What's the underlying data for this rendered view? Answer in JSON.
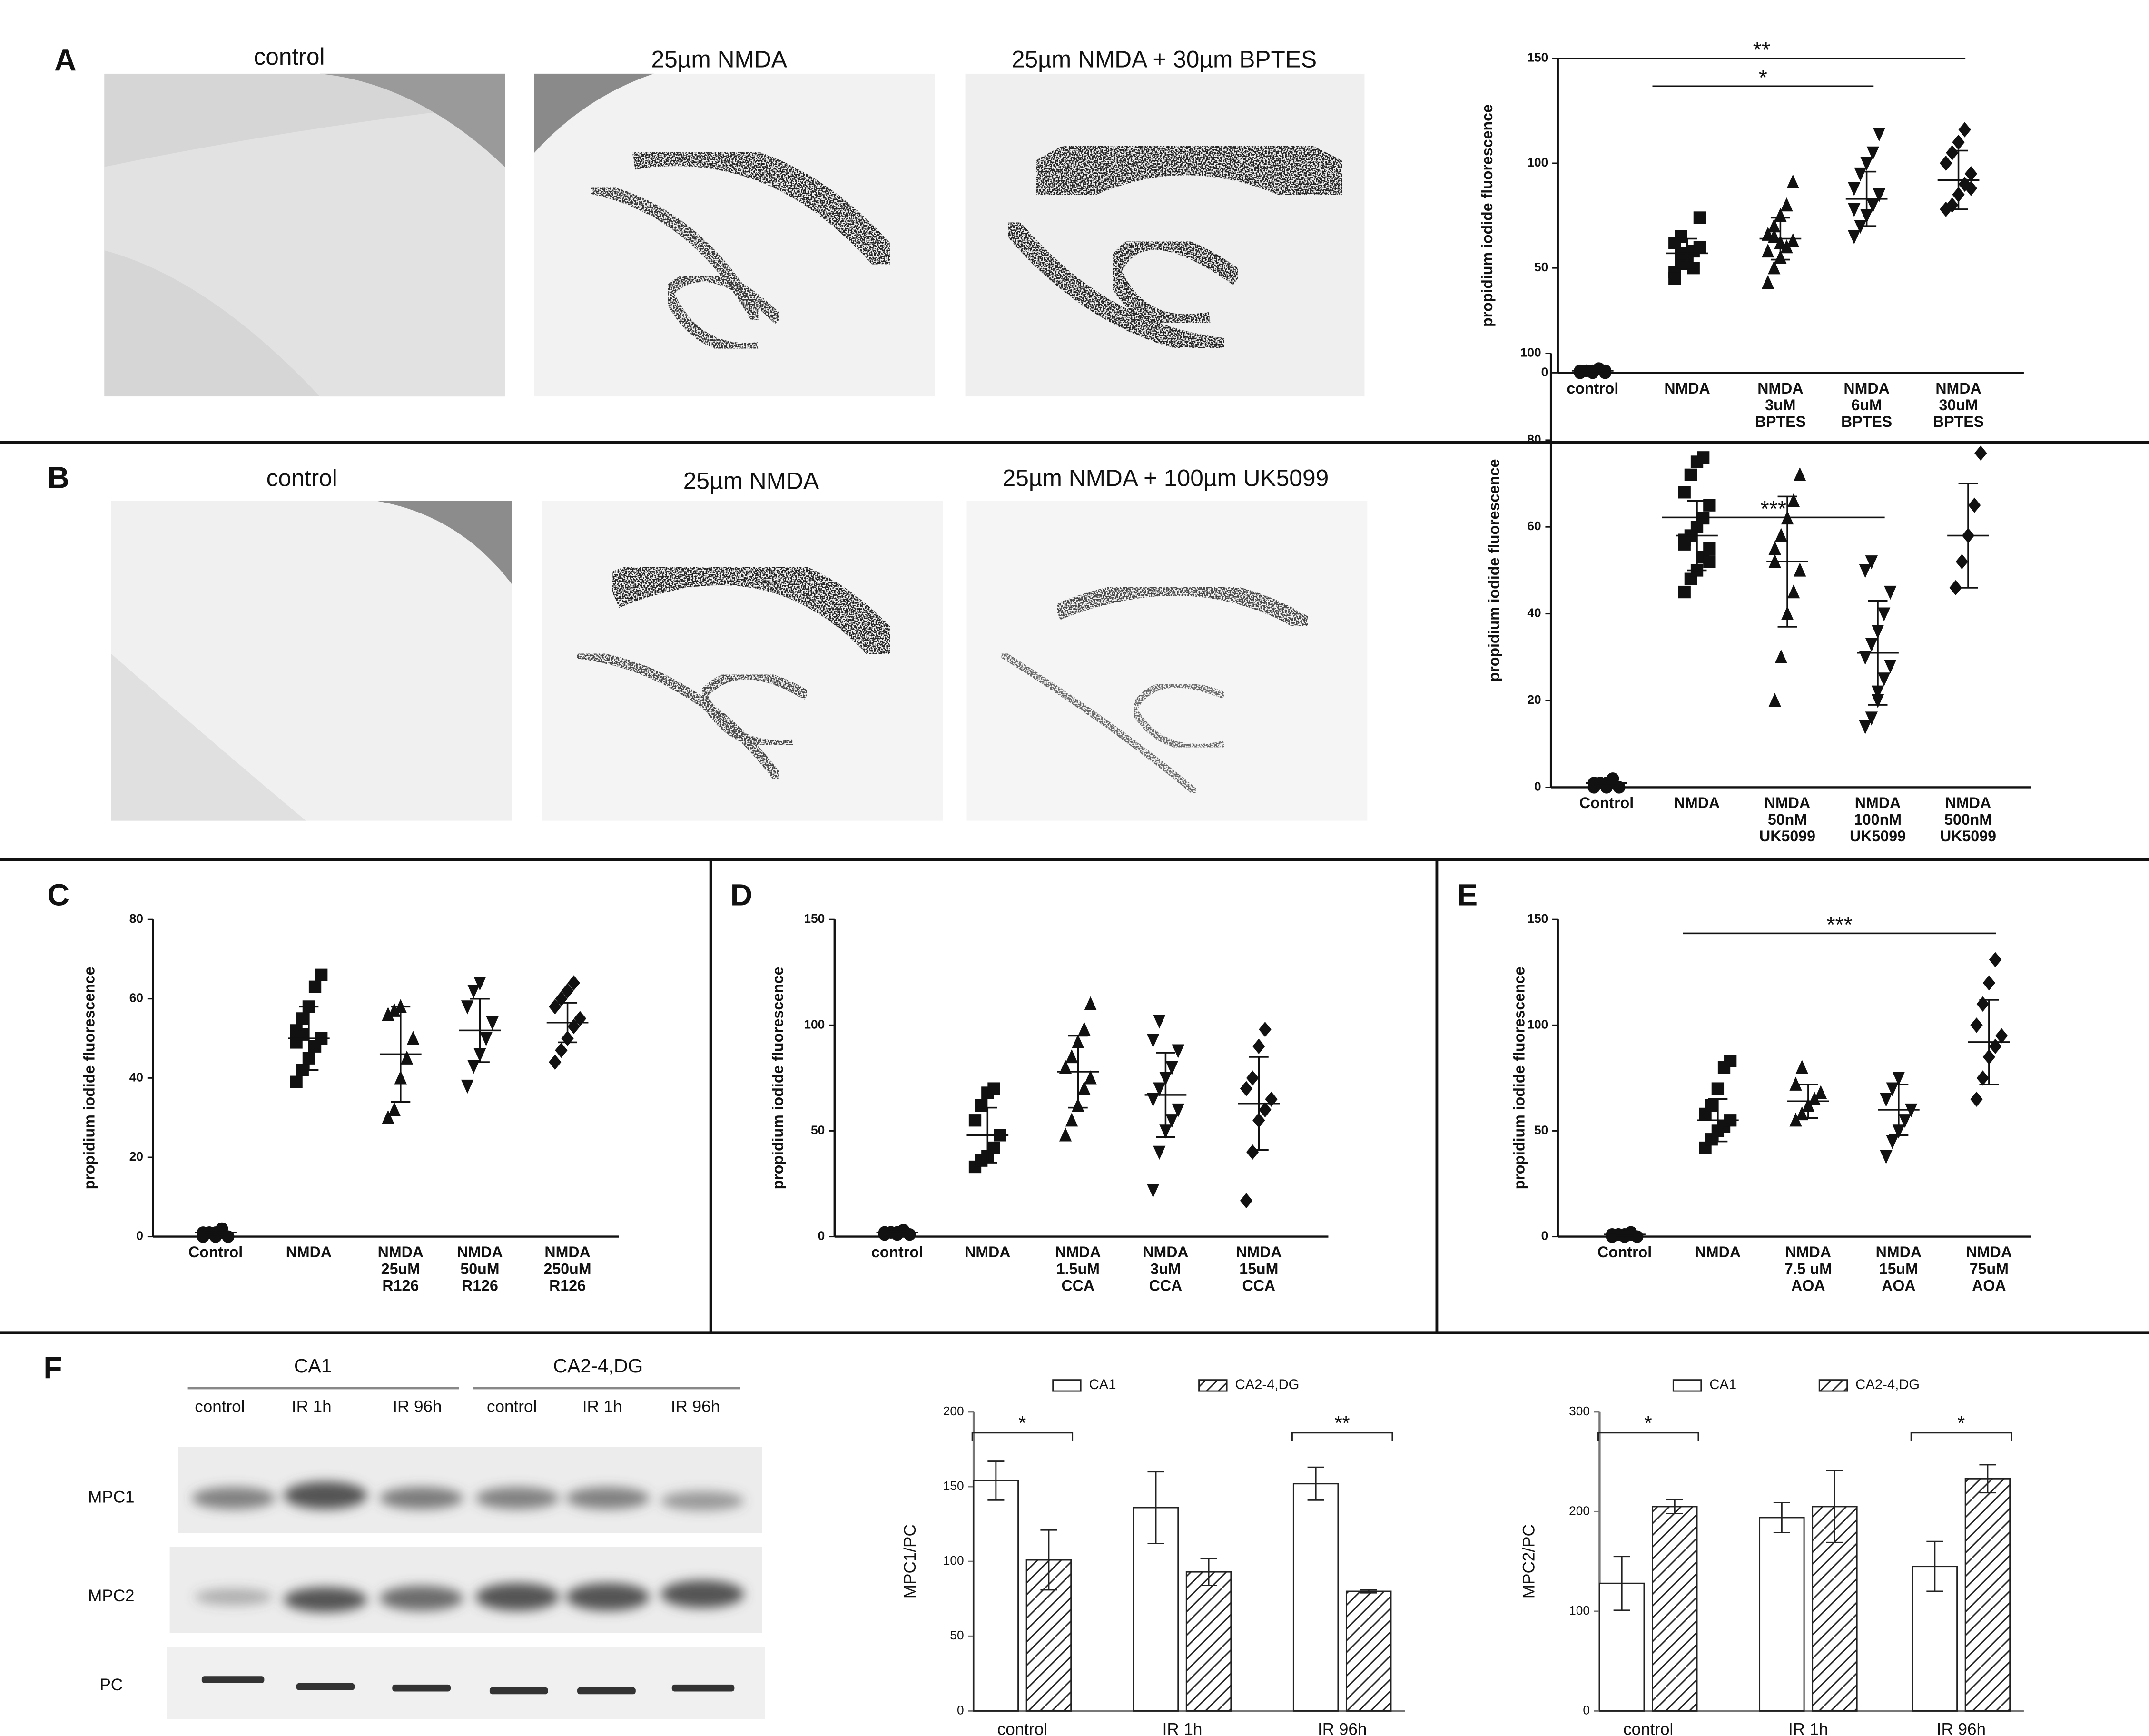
{
  "panel_labels": [
    "A",
    "B",
    "C",
    "D",
    "E",
    "F"
  ],
  "images": {
    "A": [
      "control",
      "25µm NMDA",
      "25µm NMDA + 30µm BPTES"
    ],
    "B": [
      "control",
      "25µm NMDA",
      "25µm NMDA + 100µm UK5099"
    ]
  },
  "blot": {
    "groups": [
      "CA1",
      "CA2-4,DG"
    ],
    "lanes": [
      "control",
      "IR 1h",
      "IR 96h",
      "control",
      "IR 1h",
      "IR 96h"
    ],
    "rows": [
      "MPC1",
      "MPC2",
      "PC"
    ]
  },
  "chart_data": [
    {
      "type": "dotplot",
      "ylabel": "propidium iodide fluorescence",
      "ylim": [
        0,
        150
      ],
      "yticks": [
        0,
        50,
        100,
        150
      ],
      "categories": [
        [
          "control"
        ],
        [
          "NMDA"
        ],
        [
          "NMDA",
          "3uM",
          "BPTES"
        ],
        [
          "NMDA",
          "6uM",
          "BPTES"
        ],
        [
          "NMDA",
          "30uM",
          "BPTES"
        ]
      ],
      "groups": [
        {
          "marker": "circle",
          "points": [
            0,
            1,
            1,
            2,
            0,
            1,
            1,
            0,
            2,
            1
          ],
          "mean": 1,
          "sd": 0.5
        },
        {
          "marker": "square",
          "points": [
            48,
            52,
            55,
            58,
            60,
            62,
            65,
            56,
            50,
            74,
            45,
            57
          ],
          "mean": 57,
          "sd": 7
        },
        {
          "marker": "triangle",
          "points": [
            43,
            50,
            55,
            60,
            63,
            66,
            70,
            75,
            80,
            91,
            58,
            65,
            62
          ],
          "mean": 64,
          "sd": 10
        },
        {
          "marker": "invtriangle",
          "points": [
            65,
            70,
            75,
            80,
            85,
            88,
            95,
            100,
            105,
            114,
            78
          ],
          "mean": 83,
          "sd": 13
        },
        {
          "marker": "diamond",
          "points": [
            78,
            80,
            85,
            90,
            95,
            100,
            105,
            110,
            116,
            88
          ],
          "mean": 92,
          "sd": 14
        }
      ],
      "annotations": [
        {
          "text": "**",
          "from": 0,
          "to": 4
        },
        {
          "text": "*",
          "from": 1,
          "to": 3
        }
      ]
    },
    {
      "type": "dotplot",
      "ylabel": "propidium iodide fluorescence",
      "ylim": [
        0,
        100
      ],
      "yticks": [
        0,
        20,
        40,
        60,
        80,
        100
      ],
      "categories": [
        [
          "Control"
        ],
        [
          "NMDA"
        ],
        [
          "NMDA",
          "50nM",
          "UK5099"
        ],
        [
          "NMDA",
          "100nM",
          "UK5099"
        ],
        [
          "NMDA",
          "500nM",
          "UK5099"
        ]
      ],
      "groups": [
        {
          "marker": "circle",
          "points": [
            0,
            1,
            1,
            2,
            0,
            1,
            1,
            0,
            1
          ],
          "mean": 1,
          "sd": 0.5
        },
        {
          "marker": "square",
          "points": [
            45,
            48,
            50,
            53,
            55,
            57,
            58,
            60,
            62,
            65,
            68,
            72,
            75,
            76,
            52,
            56
          ],
          "mean": 58,
          "sd": 8
        },
        {
          "marker": "triangle",
          "points": [
            20,
            30,
            40,
            45,
            50,
            55,
            58,
            62,
            66,
            72,
            52
          ],
          "mean": 52,
          "sd": 15
        },
        {
          "marker": "invtriangle",
          "points": [
            14,
            16,
            20,
            25,
            28,
            30,
            33,
            36,
            40,
            45,
            50,
            52,
            22
          ],
          "mean": 31,
          "sd": 12
        },
        {
          "marker": "diamond",
          "points": [
            46,
            52,
            58,
            65,
            77
          ],
          "mean": 58,
          "sd": 12
        }
      ],
      "annotations": [
        {
          "text": "***",
          "from": 1,
          "to": 3
        }
      ]
    },
    {
      "type": "dotplot",
      "ylabel": "propidium iodide fluorescence",
      "ylim": [
        0,
        80
      ],
      "yticks": [
        0,
        20,
        40,
        60,
        80
      ],
      "categories": [
        [
          "Control"
        ],
        [
          "NMDA"
        ],
        [
          "NMDA",
          "25uM",
          "R126"
        ],
        [
          "NMDA",
          "50uM",
          "R126"
        ],
        [
          "NMDA",
          "250uM",
          "R126"
        ]
      ],
      "groups": [
        {
          "marker": "circle",
          "points": [
            0,
            1,
            1,
            2,
            0,
            1,
            1,
            0,
            1
          ],
          "mean": 1,
          "sd": 0.5
        },
        {
          "marker": "square",
          "points": [
            39,
            42,
            45,
            48,
            50,
            52,
            55,
            58,
            63,
            66,
            49,
            51
          ],
          "mean": 50,
          "sd": 8
        },
        {
          "marker": "triangle",
          "points": [
            30,
            32,
            40,
            45,
            50,
            56,
            57,
            58
          ],
          "mean": 46,
          "sd": 12
        },
        {
          "marker": "invtriangle",
          "points": [
            38,
            43,
            46,
            50,
            54,
            58,
            62,
            64
          ],
          "mean": 52,
          "sd": 8
        },
        {
          "marker": "diamond",
          "points": [
            44,
            47,
            50,
            53,
            55,
            58,
            60,
            62,
            64
          ],
          "mean": 54,
          "sd": 5
        }
      ],
      "annotations": []
    },
    {
      "type": "dotplot",
      "ylabel": "propidium iodide fluorescence",
      "ylim": [
        0,
        150
      ],
      "yticks": [
        0,
        50,
        100,
        150
      ],
      "categories": [
        [
          "control"
        ],
        [
          "NMDA"
        ],
        [
          "NMDA",
          "1.5uM",
          "CCA"
        ],
        [
          "NMDA",
          "3uM",
          "CCA"
        ],
        [
          "NMDA",
          "15uM",
          "CCA"
        ]
      ],
      "groups": [
        {
          "marker": "circle",
          "points": [
            1,
            2,
            2,
            3,
            1,
            2,
            2,
            1,
            3
          ],
          "mean": 2,
          "sd": 0.5
        },
        {
          "marker": "square",
          "points": [
            33,
            36,
            38,
            42,
            48,
            55,
            62,
            68,
            70
          ],
          "mean": 48,
          "sd": 13
        },
        {
          "marker": "triangle",
          "points": [
            48,
            55,
            62,
            70,
            75,
            80,
            85,
            92,
            98,
            110
          ],
          "mean": 78,
          "sd": 17
        },
        {
          "marker": "invtriangle",
          "points": [
            22,
            40,
            50,
            55,
            60,
            65,
            70,
            75,
            80,
            88,
            93,
            102
          ],
          "mean": 67,
          "sd": 20
        },
        {
          "marker": "diamond",
          "points": [
            17,
            40,
            55,
            60,
            65,
            70,
            75,
            90,
            98
          ],
          "mean": 63,
          "sd": 22
        }
      ],
      "annotations": []
    },
    {
      "type": "dotplot",
      "ylabel": "propidium iodide fluorescence",
      "ylim": [
        0,
        150
      ],
      "yticks": [
        0,
        50,
        100,
        150
      ],
      "categories": [
        [
          "Control"
        ],
        [
          "NMDA"
        ],
        [
          "NMDA",
          "7.5 uM",
          "AOA"
        ],
        [
          "NMDA",
          "15uM",
          "AOA"
        ],
        [
          "NMDA",
          "75uM",
          "AOA"
        ]
      ],
      "groups": [
        {
          "marker": "circle",
          "points": [
            0,
            1,
            1,
            2,
            0,
            1,
            1,
            0,
            1
          ],
          "mean": 1,
          "sd": 0.5
        },
        {
          "marker": "square",
          "points": [
            42,
            46,
            50,
            52,
            55,
            58,
            62,
            70,
            80,
            83
          ],
          "mean": 55,
          "sd": 10
        },
        {
          "marker": "triangle",
          "points": [
            55,
            58,
            62,
            65,
            68,
            72,
            80
          ],
          "mean": 64,
          "sd": 8
        },
        {
          "marker": "invtriangle",
          "points": [
            38,
            45,
            50,
            55,
            60,
            65,
            70,
            75
          ],
          "mean": 60,
          "sd": 12
        },
        {
          "marker": "diamond",
          "points": [
            65,
            75,
            85,
            90,
            95,
            100,
            110,
            120,
            131
          ],
          "mean": 92,
          "sd": 20
        }
      ],
      "annotations": [
        {
          "text": "***",
          "from": 1,
          "to": 4
        }
      ]
    },
    {
      "type": "bar",
      "ylabel": "MPC1/PC",
      "ylim": [
        0,
        200
      ],
      "yticks": [
        0,
        50,
        100,
        150,
        200
      ],
      "categories": [
        "control",
        "IR 1h",
        "IR 96h"
      ],
      "series": [
        {
          "name": "CA1",
          "color": "#ffffff",
          "values": [
            154,
            136,
            152
          ],
          "errors": [
            13,
            24,
            11
          ]
        },
        {
          "name": "CA2-4,DG",
          "color": "#ffffff",
          "pattern": "hatched",
          "values": [
            101,
            93,
            80
          ],
          "errors": [
            20,
            9,
            1
          ]
        }
      ],
      "annotations": [
        {
          "text": "*",
          "category": 0
        },
        {
          "text": "**",
          "category": 2
        }
      ]
    },
    {
      "type": "bar",
      "ylabel": "MPC2/PC",
      "ylim": [
        0,
        300
      ],
      "yticks": [
        0,
        100,
        200,
        300
      ],
      "categories": [
        "control",
        "IR 1h",
        "IR 96h"
      ],
      "series": [
        {
          "name": "CA1",
          "color": "#ffffff",
          "values": [
            128,
            194,
            145
          ],
          "errors": [
            27,
            15,
            25
          ]
        },
        {
          "name": "CA2-4,DG",
          "color": "#ffffff",
          "pattern": "hatched",
          "values": [
            205,
            205,
            233
          ],
          "errors": [
            7,
            36,
            14
          ]
        }
      ],
      "annotations": [
        {
          "text": "*",
          "category": 0
        },
        {
          "text": "*",
          "category": 2
        }
      ]
    }
  ]
}
